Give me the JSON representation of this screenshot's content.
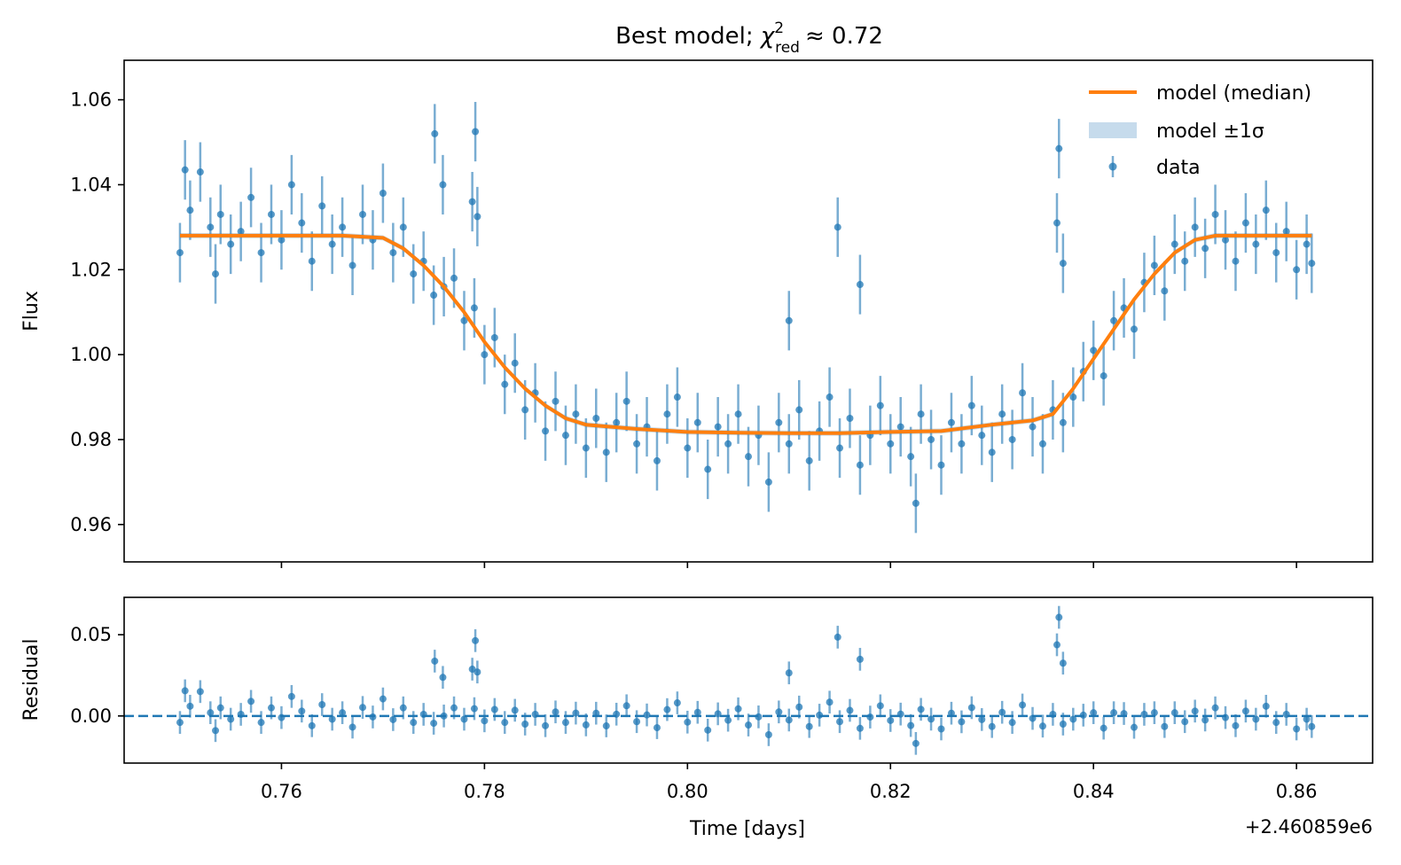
{
  "chart_data": [
    {
      "type": "scatter",
      "panel": "main",
      "title": {
        "prefix": "Best model; ",
        "symbol": "χ",
        "sup": "2",
        "sub": "red",
        "suffix": "≈ 0.72"
      },
      "xlabel": "",
      "ylabel": "Flux",
      "xlim": [
        0.7445,
        0.8675
      ],
      "ylim": [
        0.9512,
        1.0693
      ],
      "xticks": [
        0.76,
        0.78,
        0.8,
        0.82,
        0.84,
        0.86
      ],
      "yticks": [
        "0.96",
        "0.98",
        "1.00",
        "1.02",
        "1.04",
        "1.06"
      ],
      "grid": false,
      "legend": {
        "placement": "top-right",
        "entries": [
          "model (median)",
          "model ±1σ",
          "data"
        ]
      },
      "colors": {
        "data": "#1f77b4",
        "model": "#ff7f0e",
        "band": "#c6dbec"
      },
      "model": {
        "x": [
          0.75,
          0.766,
          0.77,
          0.772,
          0.774,
          0.776,
          0.778,
          0.78,
          0.782,
          0.784,
          0.786,
          0.788,
          0.79,
          0.795,
          0.8,
          0.805,
          0.81,
          0.815,
          0.82,
          0.825,
          0.83,
          0.834,
          0.836,
          0.838,
          0.84,
          0.842,
          0.844,
          0.846,
          0.848,
          0.85,
          0.852,
          0.8615
        ],
        "y": [
          1.028,
          1.028,
          1.0275,
          1.025,
          1.021,
          1.016,
          1.01,
          1.003,
          0.997,
          0.992,
          0.988,
          0.985,
          0.9835,
          0.9825,
          0.9818,
          0.9816,
          0.9815,
          0.9815,
          0.9818,
          0.982,
          0.9835,
          0.9845,
          0.986,
          0.992,
          0.999,
          1.006,
          1.013,
          1.019,
          1.024,
          1.027,
          1.028,
          1.028
        ],
        "sigma": 0.0006
      },
      "data": {
        "yerr": 0.007,
        "x": [
          0.75,
          0.751,
          0.752,
          0.753,
          0.754,
          0.755,
          0.756,
          0.757,
          0.758,
          0.759,
          0.76,
          0.761,
          0.762,
          0.763,
          0.764,
          0.765,
          0.766,
          0.767,
          0.768,
          0.769,
          0.77,
          0.771,
          0.772,
          0.773,
          0.774,
          0.775,
          0.776,
          0.777,
          0.778,
          0.779,
          0.78,
          0.781,
          0.782,
          0.783,
          0.784,
          0.785,
          0.786,
          0.787,
          0.788,
          0.789,
          0.79,
          0.791,
          0.792,
          0.793,
          0.794,
          0.795,
          0.796,
          0.797,
          0.798,
          0.799,
          0.8,
          0.801,
          0.802,
          0.803,
          0.804,
          0.805,
          0.806,
          0.807,
          0.808,
          0.809,
          0.81,
          0.811,
          0.812,
          0.813,
          0.814,
          0.815,
          0.816,
          0.817,
          0.818,
          0.819,
          0.82,
          0.821,
          0.822,
          0.823,
          0.824,
          0.825,
          0.826,
          0.827,
          0.828,
          0.829,
          0.83,
          0.831,
          0.832,
          0.833,
          0.834,
          0.835,
          0.836,
          0.837,
          0.838,
          0.839,
          0.84,
          0.841,
          0.842,
          0.843,
          0.844,
          0.845,
          0.846,
          0.847,
          0.848,
          0.849,
          0.85,
          0.851,
          0.852,
          0.853,
          0.854,
          0.855,
          0.856,
          0.857,
          0.858,
          0.859,
          0.86,
          0.861,
          0.7751,
          0.7759,
          0.7788,
          0.7791,
          0.7793,
          0.81,
          0.8148,
          0.817,
          0.8225,
          0.8364,
          0.8366,
          0.837,
          0.7505,
          0.7535,
          0.8615
        ],
        "flux": [
          1.024,
          1.034,
          1.043,
          1.03,
          1.033,
          1.026,
          1.029,
          1.037,
          1.024,
          1.033,
          1.027,
          1.04,
          1.031,
          1.022,
          1.035,
          1.026,
          1.03,
          1.021,
          1.033,
          1.027,
          1.038,
          1.024,
          1.03,
          1.019,
          1.022,
          1.014,
          1.016,
          1.018,
          1.008,
          1.011,
          1.0,
          1.004,
          0.993,
          0.998,
          0.987,
          0.991,
          0.982,
          0.989,
          0.981,
          0.986,
          0.978,
          0.985,
          0.977,
          0.984,
          0.989,
          0.979,
          0.983,
          0.975,
          0.986,
          0.99,
          0.978,
          0.984,
          0.973,
          0.983,
          0.979,
          0.986,
          0.976,
          0.981,
          0.97,
          0.984,
          0.979,
          0.987,
          0.975,
          0.982,
          0.99,
          0.978,
          0.985,
          0.974,
          0.981,
          0.988,
          0.979,
          0.983,
          0.976,
          0.986,
          0.98,
          0.974,
          0.984,
          0.979,
          0.988,
          0.981,
          0.977,
          0.986,
          0.98,
          0.991,
          0.983,
          0.979,
          0.987,
          0.984,
          0.99,
          0.996,
          1.001,
          0.995,
          1.008,
          1.011,
          1.006,
          1.017,
          1.021,
          1.015,
          1.026,
          1.022,
          1.03,
          1.025,
          1.033,
          1.027,
          1.022,
          1.031,
          1.026,
          1.034,
          1.024,
          1.029,
          1.02,
          1.026,
          1.052,
          1.04,
          1.036,
          1.0525,
          1.0325,
          1.008,
          1.03,
          1.0165,
          0.965,
          1.031,
          1.0485,
          1.0215,
          1.0435,
          1.019,
          1.0215
        ]
      }
    },
    {
      "type": "scatter",
      "panel": "residual",
      "xlabel": "Time [days]",
      "ylabel": "Residual",
      "x_offset_label": "+2.460859e6",
      "xlim": [
        0.7445,
        0.8675
      ],
      "ylim": [
        -0.029,
        0.073
      ],
      "xticks": [
        "0.76",
        "0.78",
        "0.80",
        "0.82",
        "0.84",
        "0.86"
      ],
      "yticks": [
        "0.00",
        "0.05"
      ],
      "reference_line": {
        "y": 0,
        "style": "dashed"
      },
      "residuals": "data flux minus model (median)"
    }
  ]
}
